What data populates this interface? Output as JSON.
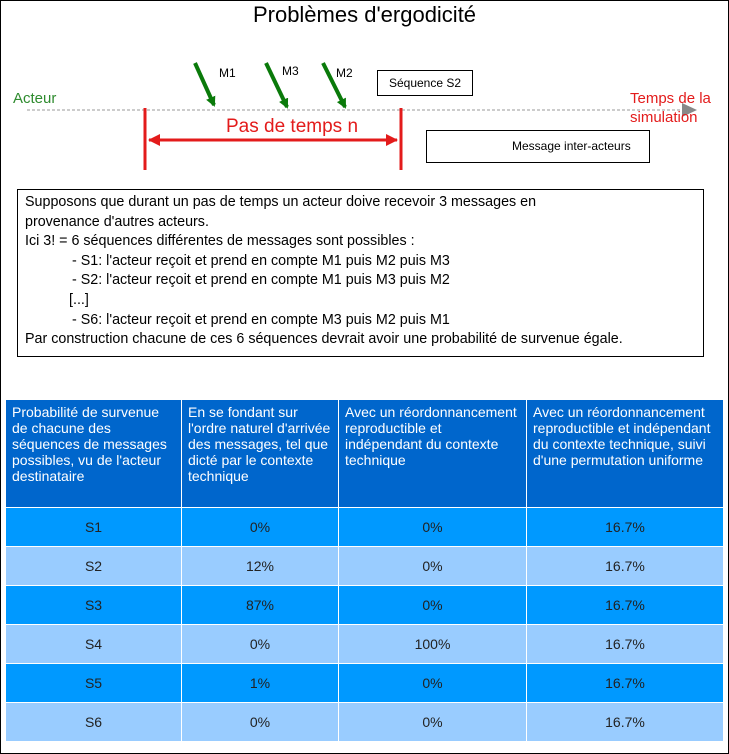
{
  "title": "Problèmes d'ergodicité",
  "diagram": {
    "messages": [
      "M1",
      "M3",
      "M2"
    ],
    "actor_label": "Acteur",
    "time_label_lines": [
      "Temps de la",
      "simulation"
    ],
    "timestep_label": "Pas de temps n",
    "sequence_label": "Séquence S2",
    "legend_label": "Message inter-acteurs",
    "colors": {
      "actor": "#2e8b2e",
      "time": "#e31b1b",
      "arrow": "#0a7a0a"
    }
  },
  "explanation": {
    "lines": [
      "Supposons que durant un pas de temps un acteur doive recevoir 3 messages en",
      "provenance d'autres acteurs.",
      "Ici 3! = 6 séquences différentes de messages sont possibles :"
    ],
    "items": [
      "- S1: l'acteur reçoit et prend en compte M1 puis M2 puis M3",
      "- S2: l'acteur reçoit et prend en compte M1 puis M3 puis M2"
    ],
    "ellipsis": "[...]",
    "item_last": "- S6: l'acteur reçoit et prend en compte M3 puis M2 puis M1",
    "conclusion": "Par construction chacune de ces 6 séquences devrait avoir une probabilité de survenue égale."
  },
  "table": {
    "headers": [
      "Probabilité de survenue de chacune des séquences de messages possibles, vu de l'acteur destinataire",
      "En se fondant sur l'ordre naturel d'arrivée des messages, tel que dicté par le contexte technique",
      "Avec un réordonnancement reproductible et indépendant du contexte technique",
      "Avec un réordonnancement reproductible et indépendant du contexte technique, suivi d'une permutation uniforme"
    ],
    "rows": [
      [
        "S1",
        "0%",
        "0%",
        "16.7%"
      ],
      [
        "S2",
        "12%",
        "0%",
        "16.7%"
      ],
      [
        "S3",
        "87%",
        "0%",
        "16.7%"
      ],
      [
        "S4",
        "0%",
        "100%",
        "16.7%"
      ],
      [
        "S5",
        "1%",
        "0%",
        "16.7%"
      ],
      [
        "S6",
        "0%",
        "0%",
        "16.7%"
      ]
    ],
    "colors": {
      "header": "#0066cc",
      "row_dark": "#0099ff",
      "row_light": "#99ccff"
    }
  }
}
